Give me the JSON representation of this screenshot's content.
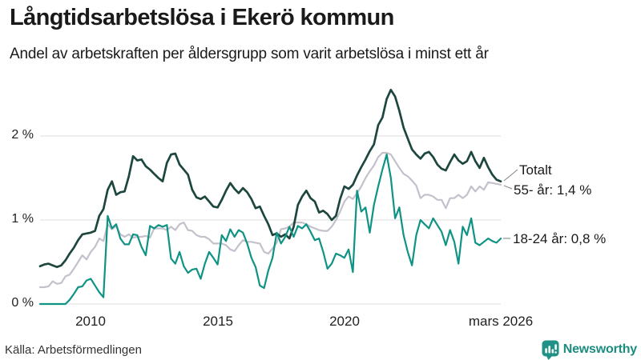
{
  "header": {
    "title": "Långtidsarbetslösa i Ekerö kommun",
    "subtitle": "Andel av arbetskraften per åldersgrupp som varit arbetslösa i minst ett år"
  },
  "footer": {
    "source": "Källa: Arbetsförmedlingen",
    "brand": "Newsworthy",
    "brand_color": "#1d8c80"
  },
  "chart_data": {
    "type": "line",
    "title": "Långtidsarbetslösa i Ekerö kommun",
    "subtitle": "Andel av arbetskraften per åldersgrupp som varit arbetslösa i minst ett år",
    "unit": "%",
    "grid": true,
    "grid_color": "#dcdcdc",
    "x_start": 2008.0,
    "x_end": 2026.17,
    "x_interval_years": 0.1667,
    "ylim": [
      0,
      2.7
    ],
    "y_ticks": [
      {
        "value": 0,
        "label": "0 %"
      },
      {
        "value": 1,
        "label": "1 %"
      },
      {
        "value": 2,
        "label": "2 %"
      }
    ],
    "x_ticks": [
      {
        "year": 2010,
        "label": "2010"
      },
      {
        "year": 2015,
        "label": "2015"
      },
      {
        "year": 2020,
        "label": "2020"
      },
      {
        "year": 2026.17,
        "label": "mars 2026"
      }
    ],
    "draw_order": [
      1,
      0,
      2
    ],
    "annotations": [
      {
        "text": "Totalt",
        "series": "Totalt"
      },
      {
        "text": "55- år: 1,4 %",
        "series": "55- år"
      },
      {
        "text": "18-24 år: 0,8 %",
        "series": "18-24 år"
      }
    ],
    "series": [
      {
        "id": "totalt",
        "name": "Totalt",
        "color": "#1d463e",
        "width": 2.7,
        "last_value": 1.46,
        "values": [
          0.45,
          0.47,
          0.48,
          0.46,
          0.44,
          0.46,
          0.52,
          0.6,
          0.67,
          0.76,
          0.83,
          0.84,
          0.85,
          0.87,
          1.05,
          1.13,
          1.36,
          1.46,
          1.3,
          1.33,
          1.34,
          1.52,
          1.76,
          1.71,
          1.72,
          1.64,
          1.6,
          1.55,
          1.5,
          1.46,
          1.68,
          1.78,
          1.79,
          1.66,
          1.6,
          1.54,
          1.36,
          1.27,
          1.25,
          1.28,
          1.22,
          1.16,
          1.15,
          1.24,
          1.35,
          1.44,
          1.37,
          1.32,
          1.38,
          1.33,
          1.25,
          1.14,
          1.16,
          1.05,
          0.95,
          0.82,
          0.84,
          0.8,
          0.83,
          0.78,
          0.92,
          1.18,
          1.28,
          1.35,
          1.26,
          1.22,
          1.09,
          1.11,
          1.07,
          1.0,
          1.05,
          1.25,
          1.4,
          1.37,
          1.42,
          1.53,
          1.63,
          1.72,
          1.82,
          1.9,
          2.13,
          2.22,
          2.44,
          2.55,
          2.47,
          2.3,
          2.1,
          1.97,
          1.84,
          1.78,
          1.73,
          1.79,
          1.81,
          1.75,
          1.66,
          1.61,
          1.59,
          1.69,
          1.78,
          1.71,
          1.67,
          1.7,
          1.81,
          1.7,
          1.62,
          1.74,
          1.63,
          1.54,
          1.48,
          1.46
        ]
      },
      {
        "id": "55-ar",
        "name": "55- år",
        "color": "#c5c1cc",
        "width": 2.2,
        "last_value": 1.42,
        "last_value_label": "1,4 %",
        "values": [
          0.2,
          0.2,
          0.21,
          0.27,
          0.24,
          0.25,
          0.33,
          0.35,
          0.42,
          0.5,
          0.58,
          0.53,
          0.62,
          0.68,
          0.78,
          0.75,
          0.95,
          0.89,
          0.93,
          0.83,
          0.8,
          0.83,
          0.79,
          0.8,
          0.8,
          0.81,
          0.79,
          0.9,
          0.9,
          0.9,
          0.88,
          0.92,
          0.88,
          0.95,
          0.97,
          0.88,
          0.87,
          0.82,
          0.8,
          0.8,
          0.77,
          0.72,
          0.72,
          0.72,
          0.7,
          0.65,
          0.63,
          0.7,
          0.76,
          0.74,
          0.74,
          0.73,
          0.72,
          0.62,
          0.6,
          0.66,
          0.73,
          0.89,
          0.9,
          0.92,
          0.97,
          0.97,
          0.97,
          0.95,
          0.92,
          0.9,
          0.88,
          0.87,
          0.87,
          0.92,
          1.0,
          1.1,
          1.22,
          1.28,
          1.25,
          1.32,
          1.4,
          1.5,
          1.58,
          1.65,
          1.75,
          1.8,
          1.8,
          1.78,
          1.7,
          1.62,
          1.55,
          1.52,
          1.47,
          1.41,
          1.26,
          1.3,
          1.3,
          1.28,
          1.24,
          1.24,
          1.14,
          1.26,
          1.26,
          1.3,
          1.26,
          1.3,
          1.4,
          1.34,
          1.4,
          1.36,
          1.45,
          1.44,
          1.43,
          1.42
        ]
      },
      {
        "id": "18-24-ar",
        "name": "18-24 år",
        "color": "#0f9384",
        "width": 2.2,
        "last_value": 0.78,
        "last_value_label": "0,8 %",
        "values": [
          0.0,
          0.0,
          0.0,
          0.0,
          0.0,
          0.0,
          0.0,
          0.05,
          0.12,
          0.2,
          0.21,
          0.28,
          0.3,
          0.22,
          0.14,
          0.08,
          1.05,
          0.9,
          0.95,
          0.78,
          0.71,
          0.71,
          0.83,
          0.82,
          0.68,
          0.58,
          0.93,
          0.9,
          0.94,
          0.92,
          0.94,
          0.54,
          0.48,
          0.62,
          0.45,
          0.37,
          0.41,
          0.42,
          0.3,
          0.48,
          0.62,
          0.55,
          0.47,
          0.82,
          0.75,
          0.89,
          0.8,
          0.88,
          0.85,
          0.72,
          0.55,
          0.44,
          0.22,
          0.19,
          0.4,
          0.55,
          0.85,
          0.72,
          0.8,
          0.92,
          0.8,
          0.93,
          0.9,
          0.95,
          0.86,
          0.76,
          0.78,
          0.62,
          0.42,
          0.48,
          0.6,
          0.58,
          0.55,
          0.65,
          0.38,
          1.35,
          1.1,
          1.15,
          0.85,
          1.18,
          1.4,
          1.6,
          1.78,
          1.5,
          1.02,
          1.15,
          0.82,
          0.62,
          0.46,
          0.82,
          1.0,
          0.95,
          0.9,
          1.02,
          0.94,
          0.86,
          0.7,
          0.88,
          0.74,
          0.48,
          0.92,
          0.82,
          1.02,
          0.73,
          0.7,
          0.74,
          0.78,
          0.75,
          0.73,
          0.78
        ]
      }
    ]
  }
}
